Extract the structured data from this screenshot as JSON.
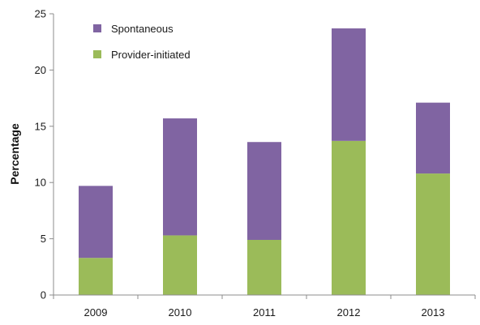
{
  "chart_data": {
    "type": "bar",
    "stacked": true,
    "categories": [
      "2009",
      "2010",
      "2011",
      "2012",
      "2013"
    ],
    "series": [
      {
        "name": "Provider-initiated",
        "values": [
          3.3,
          5.3,
          4.9,
          13.7,
          10.8
        ],
        "color": "#9bbb59"
      },
      {
        "name": "Spontaneous",
        "values": [
          6.4,
          10.4,
          8.7,
          10.0,
          6.3
        ],
        "color": "#8064a2"
      }
    ],
    "legend_order": [
      "Spontaneous",
      "Provider-initiated"
    ],
    "ylabel": "Percentage",
    "ylim": [
      0,
      25
    ],
    "yticks": [
      "0",
      "5",
      "10",
      "15",
      "20",
      "25"
    ],
    "grid": false,
    "legend_position": "top-left"
  }
}
